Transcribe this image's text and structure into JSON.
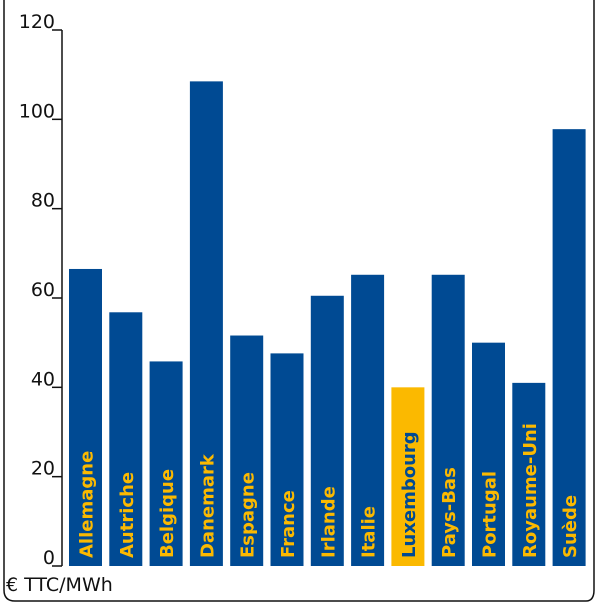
{
  "chart_data": {
    "type": "bar",
    "categories": [
      "Allemagne",
      "Autriche",
      "Belgique",
      "Danemark",
      "Espagne",
      "France",
      "Irlande",
      "Italie",
      "Luxembourg",
      "Pays-Bas",
      "Portugal",
      "Royaume-Uni",
      "Suède"
    ],
    "values": [
      66.5,
      56.8,
      45.8,
      108.5,
      51.6,
      47.6,
      60.5,
      65.2,
      40.0,
      65.2,
      50.0,
      41.0,
      97.8
    ],
    "unit_label": "€ TTC/MWh",
    "ylim": [
      0,
      120
    ],
    "yticks": [
      "0",
      "20",
      "40",
      "60",
      "80",
      "100",
      "120"
    ],
    "grid": false,
    "highlight_category": "Luxembourg",
    "colors": {
      "bar": "#004a93",
      "highlight": "#fbb900",
      "label_on_bar": "#fbb900",
      "label_on_highlight": "#004a93"
    }
  }
}
